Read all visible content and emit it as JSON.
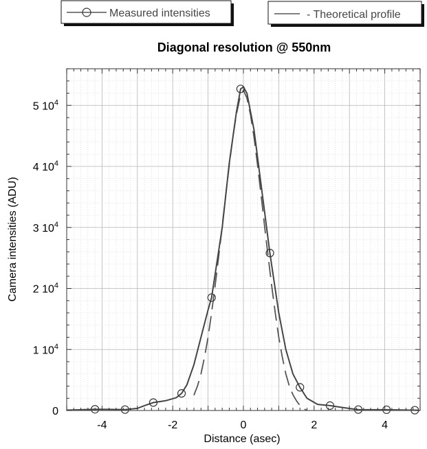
{
  "chart_data": {
    "type": "line",
    "title": "Diagonal resolution @ 550nm",
    "xlabel": "Distance (asec)",
    "ylabel": "Camera intensities (ADU)",
    "xlim": [
      -5,
      5
    ],
    "ylim": [
      0,
      56000
    ],
    "grid": true,
    "x_ticks": [
      {
        "value": -4,
        "label": "-4"
      },
      {
        "value": -2,
        "label": "-2"
      },
      {
        "value": 0,
        "label": "0"
      },
      {
        "value": 2,
        "label": "2"
      },
      {
        "value": 4,
        "label": "4"
      }
    ],
    "y_ticks": [
      {
        "value": 0,
        "label": "0",
        "exp": ""
      },
      {
        "value": 10000,
        "label": "1 10",
        "exp": "4"
      },
      {
        "value": 20000,
        "label": "2 10",
        "exp": "4"
      },
      {
        "value": 30000,
        "label": "3 10",
        "exp": "4"
      },
      {
        "value": 40000,
        "label": "4 10",
        "exp": "4"
      },
      {
        "value": 50000,
        "label": "5 10",
        "exp": "4"
      }
    ],
    "series": [
      {
        "name": "Measured intensities",
        "style": "solid-with-circle-markers",
        "x": [
          -4.2,
          -3.35,
          -2.55,
          -1.75,
          -0.9,
          -0.08,
          0.75,
          1.6,
          2.45,
          3.25,
          4.05,
          4.85
        ],
        "values": [
          200,
          150,
          1300,
          2800,
          18500,
          52700,
          25800,
          3800,
          800,
          150,
          120,
          50
        ],
        "curve": [
          [
            -5.0,
            60
          ],
          [
            -4.6,
            120
          ],
          [
            -4.2,
            200
          ],
          [
            -3.8,
            180
          ],
          [
            -3.35,
            150
          ],
          [
            -3.0,
            350
          ],
          [
            -2.8,
            800
          ],
          [
            -2.55,
            1300
          ],
          [
            -2.2,
            1600
          ],
          [
            -1.9,
            2100
          ],
          [
            -1.75,
            2800
          ],
          [
            -1.6,
            4200
          ],
          [
            -1.4,
            7500
          ],
          [
            -1.2,
            12000
          ],
          [
            -1.0,
            16500
          ],
          [
            -0.9,
            18500
          ],
          [
            -0.6,
            30000
          ],
          [
            -0.4,
            40500
          ],
          [
            -0.2,
            48800
          ],
          [
            -0.08,
            52700
          ],
          [
            0.0,
            53000
          ],
          [
            0.1,
            52000
          ],
          [
            0.3,
            46000
          ],
          [
            0.5,
            37000
          ],
          [
            0.75,
            25800
          ],
          [
            1.0,
            16000
          ],
          [
            1.2,
            10000
          ],
          [
            1.4,
            6000
          ],
          [
            1.6,
            3800
          ],
          [
            1.8,
            2000
          ],
          [
            2.1,
            1000
          ],
          [
            2.45,
            800
          ],
          [
            2.8,
            500
          ],
          [
            3.25,
            150
          ],
          [
            3.6,
            120
          ],
          [
            4.05,
            120
          ],
          [
            4.5,
            80
          ],
          [
            4.95,
            40
          ]
        ]
      },
      {
        "name": "- Theoretical profile",
        "style": "dashed",
        "curve": [
          [
            -1.4,
            2500
          ],
          [
            -1.3,
            4000
          ],
          [
            -1.2,
            6000
          ],
          [
            -1.1,
            8800
          ],
          [
            -1.0,
            12000
          ],
          [
            -0.9,
            16000
          ],
          [
            -0.8,
            20500
          ],
          [
            -0.7,
            25200
          ],
          [
            -0.6,
            30200
          ],
          [
            -0.5,
            35300
          ],
          [
            -0.4,
            40200
          ],
          [
            -0.3,
            44800
          ],
          [
            -0.2,
            48500
          ],
          [
            -0.1,
            51200
          ],
          [
            0.0,
            52500
          ],
          [
            0.1,
            51200
          ],
          [
            0.2,
            48500
          ],
          [
            0.3,
            44800
          ],
          [
            0.4,
            40200
          ],
          [
            0.5,
            35300
          ],
          [
            0.6,
            30200
          ],
          [
            0.7,
            25200
          ],
          [
            0.8,
            20500
          ],
          [
            0.9,
            16000
          ],
          [
            1.0,
            12000
          ],
          [
            1.1,
            8800
          ],
          [
            1.2,
            6000
          ],
          [
            1.3,
            4000
          ],
          [
            1.4,
            2600
          ],
          [
            1.5,
            1600
          ],
          [
            1.6,
            800
          ],
          [
            1.7,
            300
          ],
          [
            1.8,
            0
          ]
        ]
      }
    ],
    "legend": [
      "Measured intensities",
      "- Theoretical profile"
    ],
    "legend_position": "top"
  }
}
